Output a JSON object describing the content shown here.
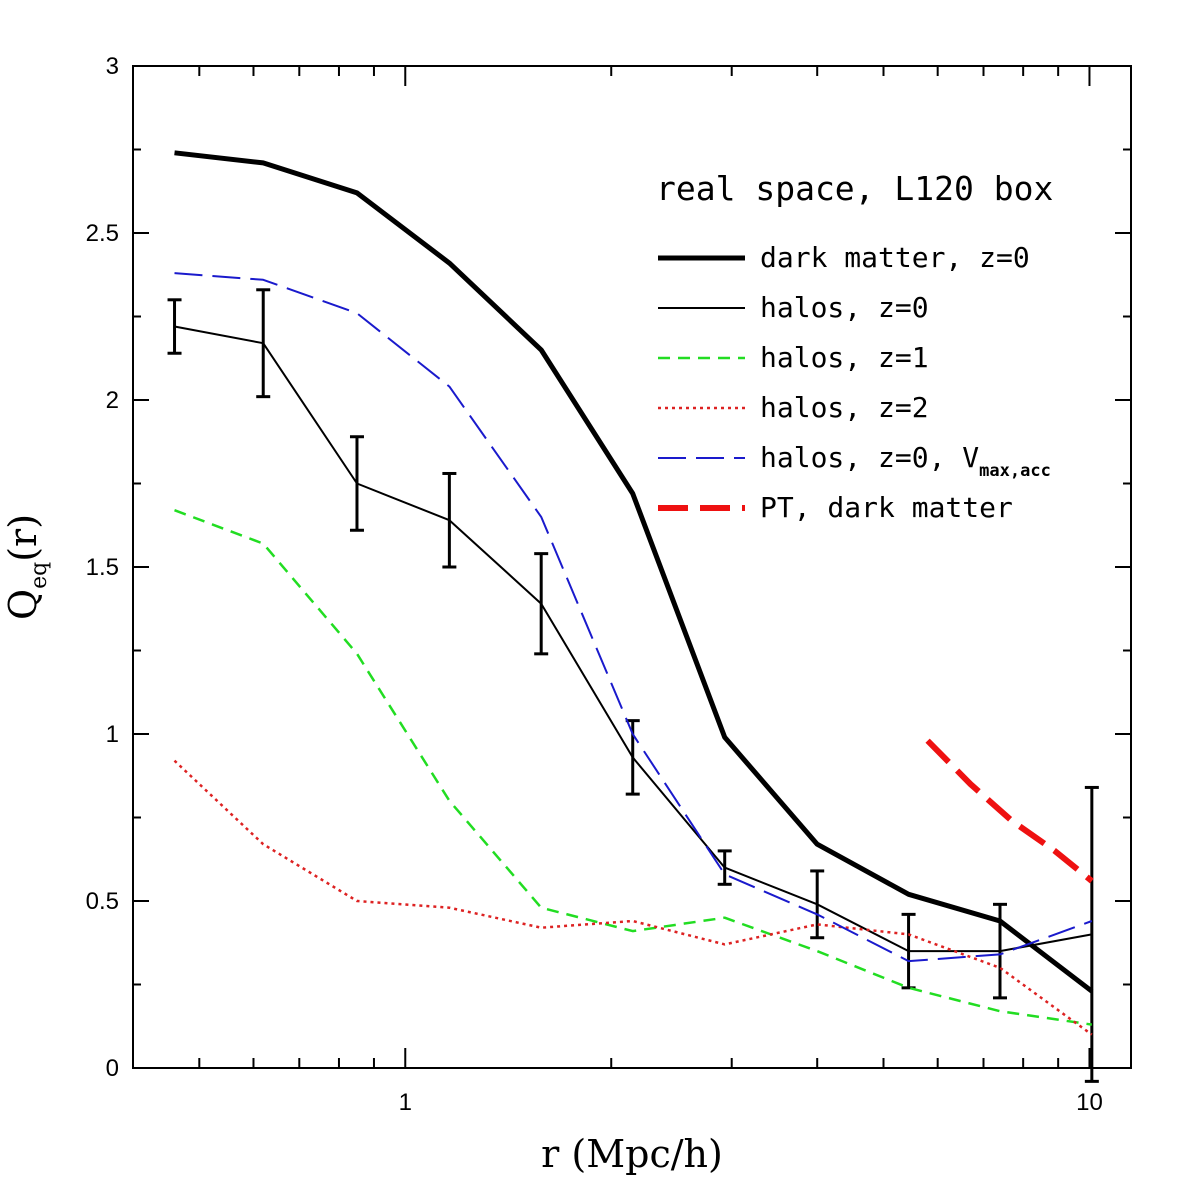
{
  "chart_data": {
    "type": "line",
    "title": "",
    "xlabel": "r (Mpc/h)",
    "ylabel_main": "Q",
    "ylabel_sub": "eq",
    "ylabel_tail": "(r)",
    "xscale": "log",
    "xlim": [
      0.4,
      11.5
    ],
    "ylim": [
      0,
      3
    ],
    "xticks": [
      {
        "value": 1,
        "label": "1"
      },
      {
        "value": 10,
        "label": "10"
      }
    ],
    "yticks": [
      {
        "value": 0,
        "label": "0"
      },
      {
        "value": 0.5,
        "label": "0.5"
      },
      {
        "value": 1,
        "label": "1"
      },
      {
        "value": 1.5,
        "label": "1.5"
      },
      {
        "value": 2,
        "label": "2"
      },
      {
        "value": 2.5,
        "label": "2.5"
      },
      {
        "value": 3,
        "label": "3"
      }
    ],
    "legend_title": "real space, L120 box",
    "legend_position": "top-right",
    "series": [
      {
        "name": "dark matter, z=0",
        "color": "#000000",
        "style": "solid-thick",
        "x": [
          0.46,
          0.62,
          0.85,
          1.16,
          1.58,
          2.15,
          2.93,
          4.0,
          5.44,
          7.4,
          10.08
        ],
        "y": [
          2.74,
          2.71,
          2.62,
          2.41,
          2.15,
          1.72,
          0.99,
          0.67,
          0.52,
          0.44,
          0.23
        ]
      },
      {
        "name": "halos, z=0",
        "color": "#000000",
        "style": "solid-thin",
        "x": [
          0.46,
          0.62,
          0.85,
          1.16,
          1.58,
          2.15,
          2.93,
          4.0,
          5.44,
          7.4,
          10.08
        ],
        "y": [
          2.22,
          2.17,
          1.75,
          1.64,
          1.39,
          0.93,
          0.6,
          0.49,
          0.35,
          0.35,
          0.4
        ],
        "err": [
          0.08,
          0.16,
          0.14,
          0.14,
          0.15,
          0.11,
          0.05,
          0.1,
          0.11,
          0.14,
          0.44
        ]
      },
      {
        "name": "halos, z=1",
        "color": "#22dd22",
        "style": "dashed",
        "x": [
          0.46,
          0.62,
          0.85,
          1.16,
          1.58,
          2.15,
          2.93,
          4.0,
          5.44,
          7.4,
          10.08
        ],
        "y": [
          1.67,
          1.57,
          1.24,
          0.8,
          0.48,
          0.41,
          0.45,
          0.35,
          0.24,
          0.17,
          0.13
        ]
      },
      {
        "name": "halos, z=2",
        "color": "#dd2222",
        "style": "dotted",
        "x": [
          0.46,
          0.62,
          0.85,
          1.16,
          1.58,
          2.15,
          2.93,
          4.0,
          5.44,
          7.4,
          10.08
        ],
        "y": [
          0.92,
          0.67,
          0.5,
          0.48,
          0.42,
          0.44,
          0.37,
          0.43,
          0.4,
          0.3,
          0.1
        ]
      },
      {
        "name": "halos, z=0, V",
        "name_sub": "max,acc",
        "color": "#1a1acc",
        "style": "longdash",
        "x": [
          0.46,
          0.62,
          0.85,
          1.16,
          1.58,
          2.15,
          2.93,
          4.0,
          5.44,
          7.4,
          10.08
        ],
        "y": [
          2.38,
          2.36,
          2.26,
          2.04,
          1.65,
          1.0,
          0.58,
          0.46,
          0.32,
          0.34,
          0.44
        ]
      },
      {
        "name": "PT, dark matter",
        "color": "#ee1111",
        "style": "longdash-thick",
        "x": [
          5.8,
          6.7,
          7.7,
          8.9,
          10.08
        ],
        "y": [
          0.98,
          0.85,
          0.74,
          0.65,
          0.56
        ]
      }
    ]
  }
}
